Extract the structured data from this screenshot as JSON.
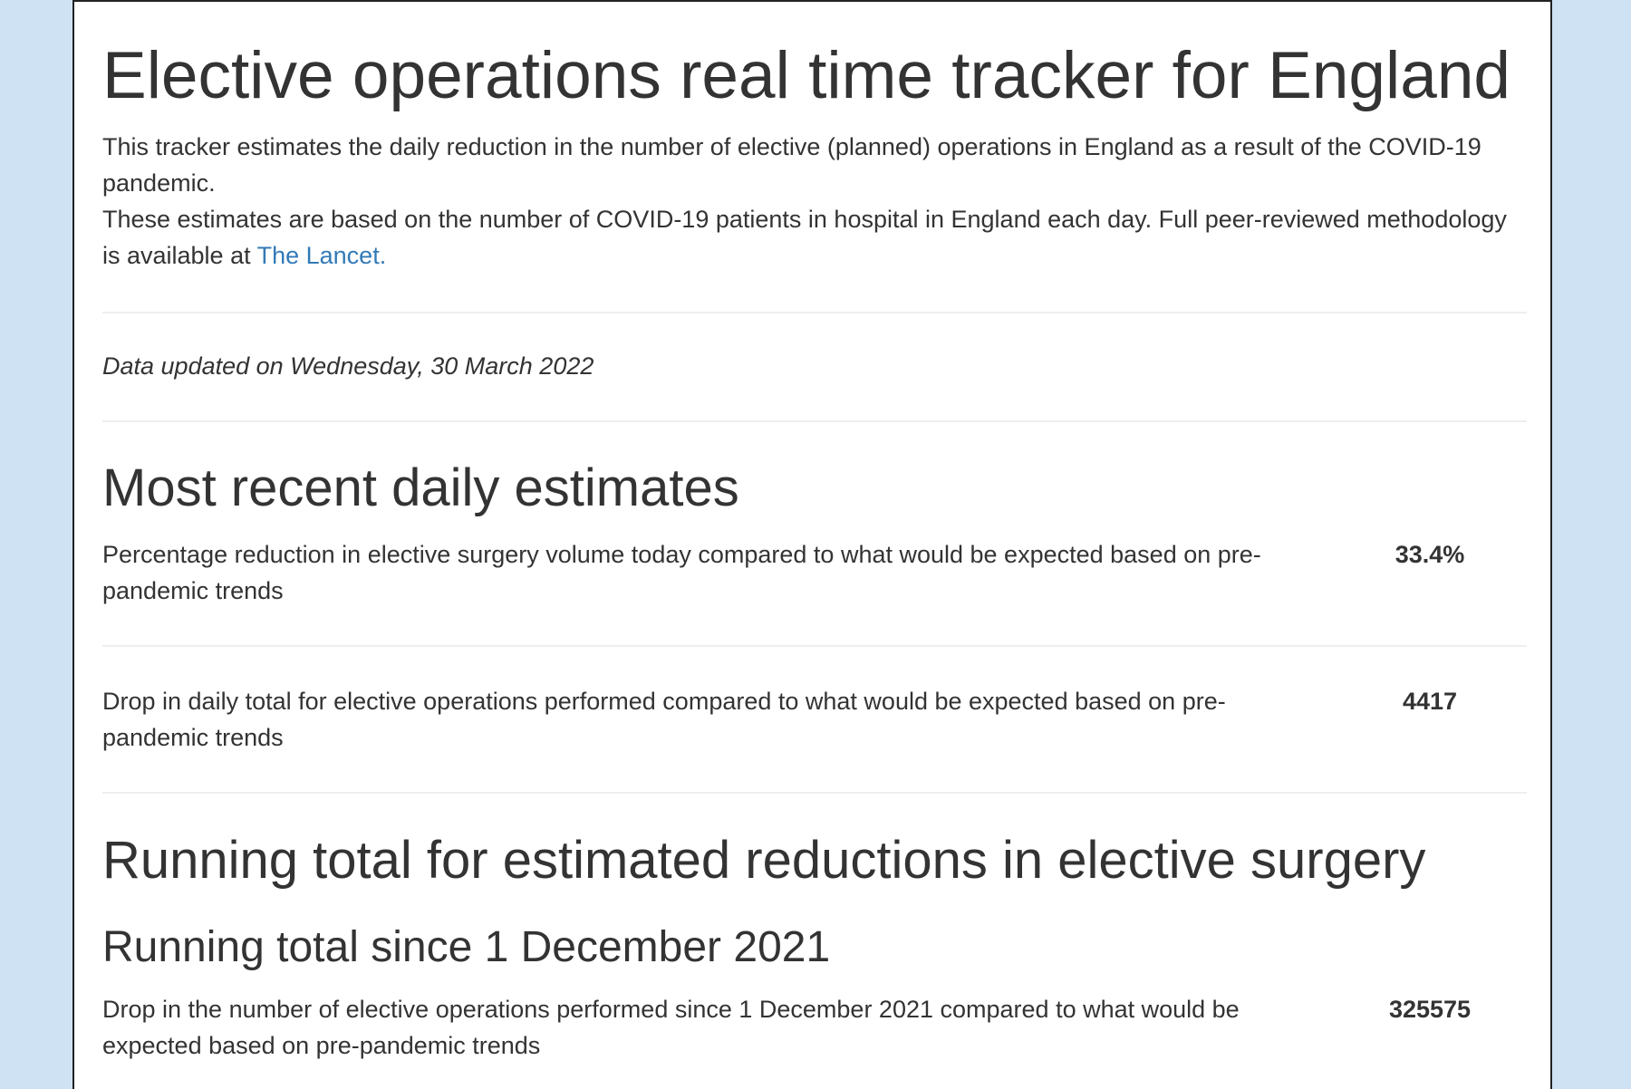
{
  "page": {
    "title": "Elective operations real time tracker for England",
    "intro_line1": "This tracker estimates the daily reduction in the number of elective (planned) operations in England as a result of the COVID-19 pandemic.",
    "intro_line2_prefix": "These estimates are based on the number of COVID-19 patients in hospital in England each day. Full peer-reviewed methodology is available at ",
    "intro_link_text": "The Lancet.",
    "updated_text": "Data updated on Wednesday, 30 March 2022"
  },
  "recent": {
    "heading": "Most recent daily estimates",
    "items": [
      {
        "label": "Percentage reduction in elective surgery volume today compared to what would be expected based on pre-pandemic trends",
        "value": "33.4%"
      },
      {
        "label": "Drop in daily total for elective operations performed compared to what would be expected based on pre-pandemic trends",
        "value": "4417"
      }
    ]
  },
  "running": {
    "heading": "Running total for estimated reductions in elective surgery",
    "subheading": "Running total since 1 December 2021",
    "items": [
      {
        "label": "Drop in the number of elective operations performed since 1 December 2021 compared to what would be expected based on pre-pandemic trends",
        "value": "325575"
      }
    ]
  },
  "colors": {
    "background": "#cfe2f3",
    "panel": "#ffffff",
    "text": "#333333",
    "link": "#337ab7",
    "rule": "#eeeeee"
  }
}
